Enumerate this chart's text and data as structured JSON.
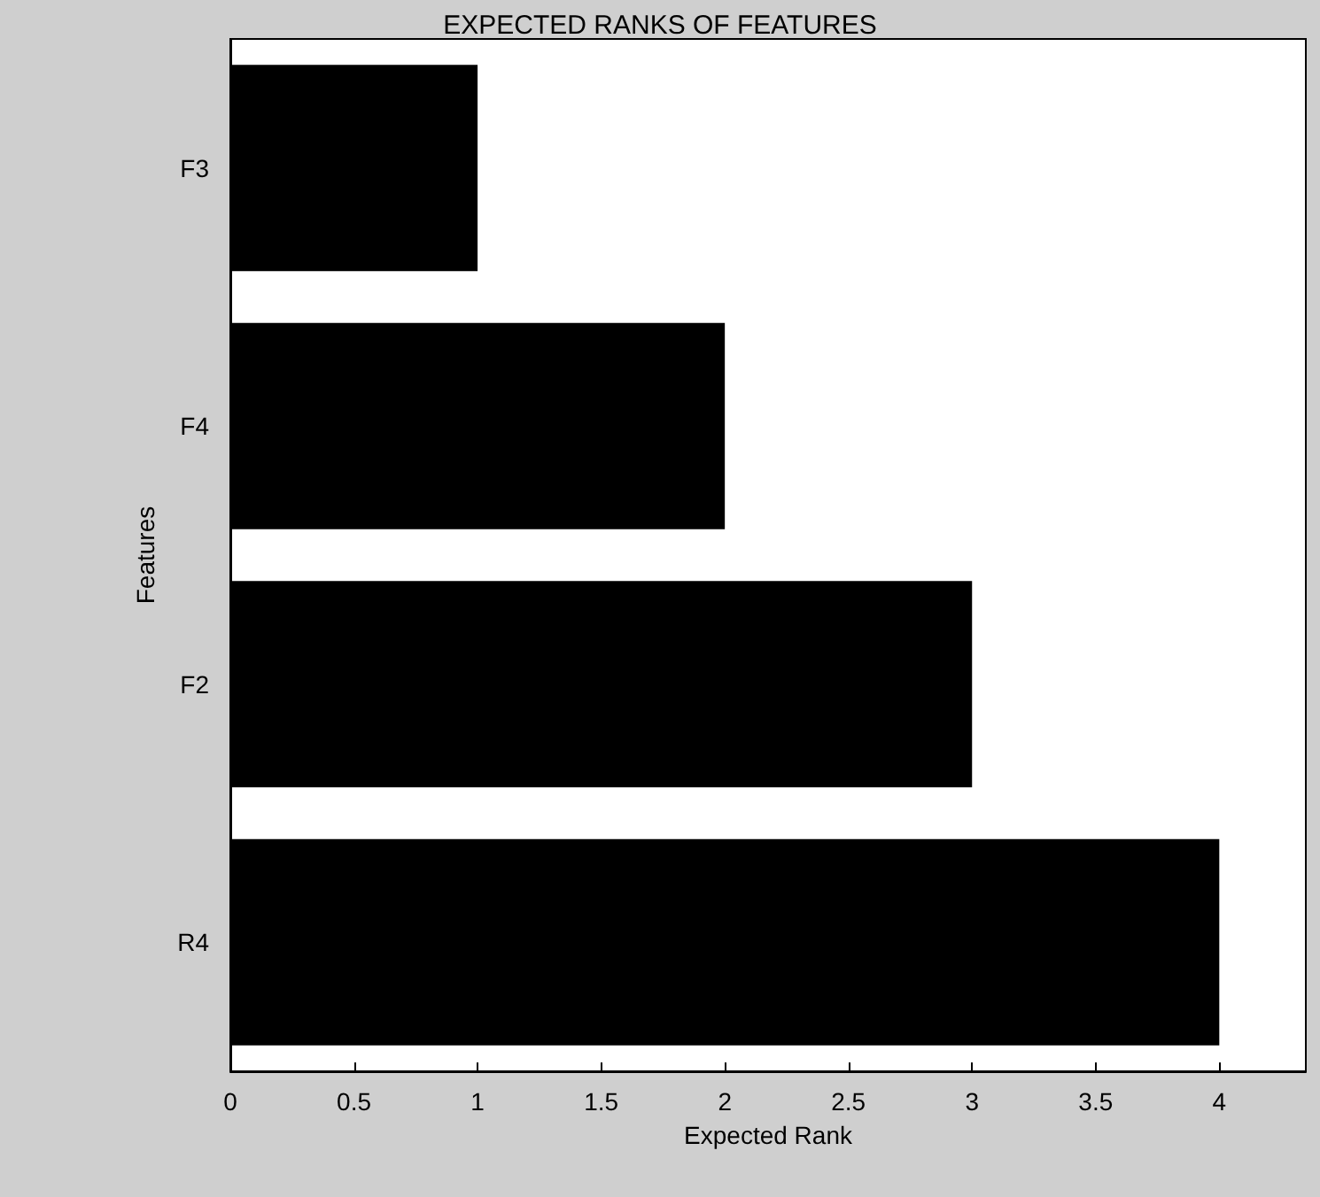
{
  "chart_data": {
    "type": "bar",
    "orientation": "horizontal",
    "title": "EXPECTED RANKS OF FEATURES",
    "xlabel": "Expected Rank",
    "ylabel": "Features",
    "categories": [
      "F3",
      "F4",
      "F2",
      "R4"
    ],
    "values": [
      1,
      2,
      3,
      4
    ],
    "color": "#000000",
    "xlim": [
      0,
      4.35
    ],
    "xticks": [
      0,
      0.5,
      1,
      1.5,
      2,
      2.5,
      3,
      3.5,
      4
    ],
    "grid": false
  }
}
